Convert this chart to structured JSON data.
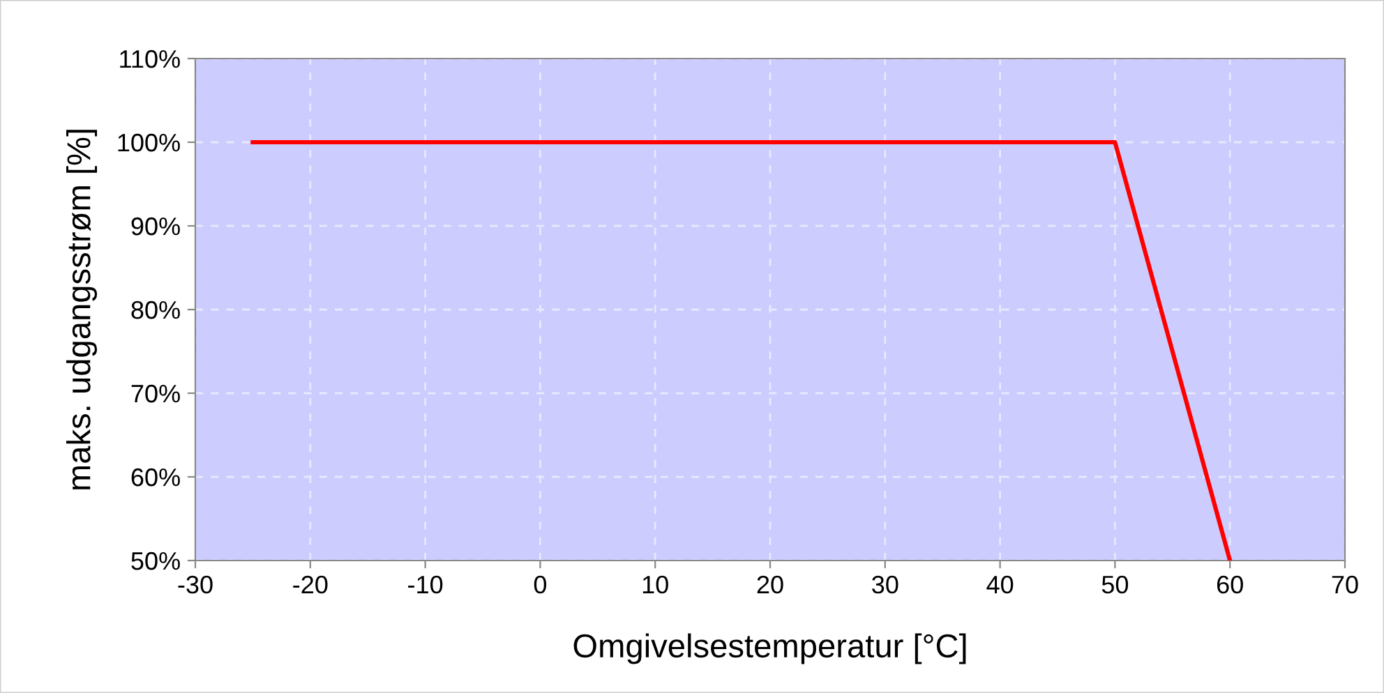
{
  "chart_data": {
    "type": "line",
    "xlabel": "Omgivelsestemperatur [°C]",
    "ylabel": "maks. udgangsstrøm [%]",
    "x": [
      -25,
      50,
      55,
      56,
      60
    ],
    "series": [
      {
        "color": "#ff0000",
        "values": [
          100,
          100,
          75,
          70,
          50
        ]
      }
    ],
    "xlim": [
      -30,
      70
    ],
    "xticks": [
      -30,
      -20,
      -10,
      0,
      10,
      20,
      30,
      40,
      50,
      60,
      70
    ],
    "ylim": [
      50,
      110
    ],
    "yticks": [
      {
        "value": 50,
        "label": "50%"
      },
      {
        "value": 60,
        "label": "60%"
      },
      {
        "value": 70,
        "label": "70%"
      },
      {
        "value": 80,
        "label": "80%"
      },
      {
        "value": 90,
        "label": "90%"
      },
      {
        "value": 100,
        "label": "100%"
      },
      {
        "value": 110,
        "label": "110%"
      }
    ],
    "grid": true,
    "marker": "none",
    "line_style": "solid"
  }
}
